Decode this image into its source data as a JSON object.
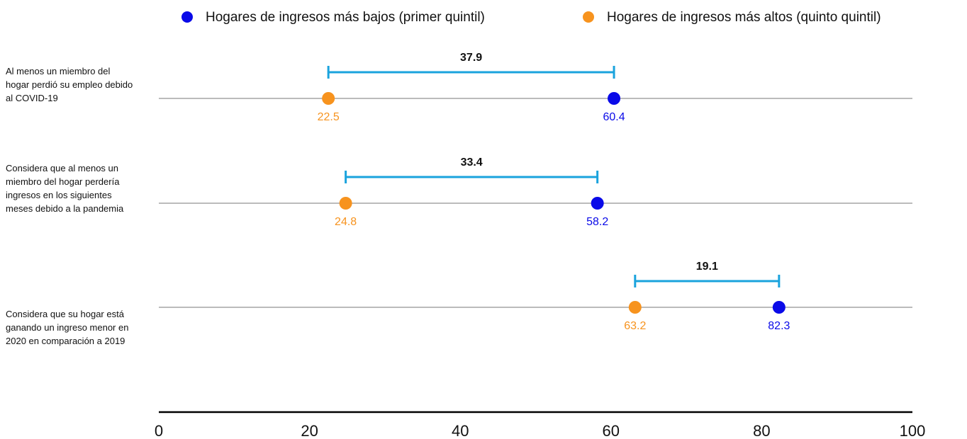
{
  "chart_data": {
    "type": "dumbbell",
    "categories": [
      "Al menos un miembro del hogar perdió su empleo debido al COVID-19",
      "Considera que al menos un miembro del hogar perdería ingresos en los siguientes meses debido a la pandemia",
      "Considera que su hogar está ganando un ingreso menor en 2020 en comparación a 2019"
    ],
    "series": [
      {
        "name": "Hogares de ingresos más bajos (primer quintil)",
        "color": "#0a0ae8",
        "values": [
          60.4,
          58.2,
          82.3
        ]
      },
      {
        "name": "Hogares de ingresos más altos (quinto quintil)",
        "color": "#f7931e",
        "values": [
          22.5,
          24.8,
          63.2
        ]
      }
    ],
    "differences": [
      37.9,
      33.4,
      19.1
    ],
    "difference_color": "#1aa3dd",
    "xlim": [
      0,
      100
    ],
    "xticks": [
      0,
      20,
      40,
      60,
      80,
      100
    ]
  }
}
